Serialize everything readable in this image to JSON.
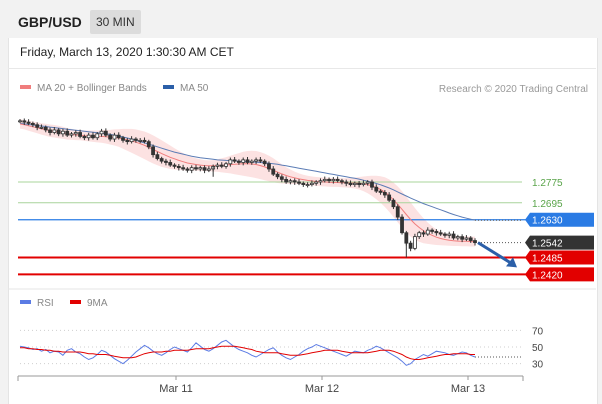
{
  "header": {
    "pair": "GBP/USD",
    "timeframe": "30 MIN"
  },
  "datetime": "Friday, March 13, 2020 1:30:30 AM CET",
  "legend": {
    "ma20": "MA 20 + Bollinger Bands",
    "ma50": "MA 50",
    "research": "Research © 2020 Trading Central"
  },
  "rsi_legend": {
    "rsi": "RSI",
    "ma9": "9MA"
  },
  "colors": {
    "candle": "#333333",
    "ma20": "#f07d7d",
    "bb_fill": "#fbd8d8",
    "ma50": "#5b7cb5",
    "green": "#a8d49b",
    "blue": "#2a7be4",
    "red": "#e20000",
    "price": "#333333",
    "rsi": "#5b7be4",
    "rsi_ma": "#e20000",
    "arrow": "#2b5fa8"
  },
  "chart_data": [
    {
      "type": "candlestick",
      "ylim": [
        1.236,
        1.309
      ],
      "x_ticks": [
        "Mar 11",
        "Mar 12",
        "Mar 13"
      ],
      "levels": [
        {
          "label": "1.2775",
          "value": 1.2775,
          "kind": "resistance"
        },
        {
          "label": "1.2695",
          "value": 1.2695,
          "kind": "resistance"
        },
        {
          "label": "1.2630",
          "value": 1.263,
          "kind": "pivot"
        },
        {
          "label": "1.2542",
          "value": 1.2542,
          "kind": "last"
        },
        {
          "label": "1.2485",
          "value": 1.2485,
          "kind": "support"
        },
        {
          "label": "1.2420",
          "value": 1.242,
          "kind": "support"
        }
      ],
      "close": [
        1.301,
        1.3005,
        1.3,
        1.2995,
        1.2985,
        1.2985,
        1.2975,
        1.2965,
        1.2975,
        1.296,
        1.297,
        1.2955,
        1.296,
        1.2965,
        1.295,
        1.2945,
        1.2955,
        1.2945,
        1.296,
        1.297,
        1.2955,
        1.294,
        1.2955,
        1.2945,
        1.2935,
        1.293,
        1.294,
        1.2935,
        1.2935,
        1.293,
        1.291,
        1.288,
        1.2865,
        1.2855,
        1.285,
        1.284,
        1.2835,
        1.283,
        1.2825,
        1.282,
        1.283,
        1.2825,
        1.283,
        1.282,
        1.2825,
        1.2835,
        1.284,
        1.2835,
        1.2845,
        1.286,
        1.2855,
        1.285,
        1.286,
        1.285,
        1.2855,
        1.286,
        1.2855,
        1.2845,
        1.2825,
        1.2805,
        1.2795,
        1.2785,
        1.2775,
        1.278,
        1.2775,
        1.277,
        1.2765,
        1.2765,
        1.277,
        1.2775,
        1.278,
        1.2785,
        1.278,
        1.2785,
        1.278,
        1.2775,
        1.277,
        1.2765,
        1.277,
        1.2765,
        1.277,
        1.2775,
        1.2755,
        1.274,
        1.2735,
        1.2725,
        1.2705,
        1.268,
        1.264,
        1.258,
        1.254,
        1.252,
        1.2565,
        1.258,
        1.2575,
        1.259,
        1.2585,
        1.258,
        1.2575,
        1.257,
        1.2575,
        1.256,
        1.2565,
        1.2555,
        1.256,
        1.255,
        1.2542
      ],
      "ma20": [
        1.2998,
        1.2995,
        1.2991,
        1.2987,
        1.2983,
        1.2979,
        1.2976,
        1.2972,
        1.297,
        1.2967,
        1.2964,
        1.296,
        1.2958,
        1.2956,
        1.2955,
        1.2953,
        1.2952,
        1.2951,
        1.295,
        1.295,
        1.2949,
        1.2947,
        1.2946,
        1.2944,
        1.2941,
        1.2937,
        1.2933,
        1.2928,
        1.2922,
        1.2916,
        1.2908,
        1.29,
        1.2892,
        1.2884,
        1.2877,
        1.287,
        1.2864,
        1.2858,
        1.2853,
        1.2848,
        1.2845,
        1.2842,
        1.284,
        1.2838,
        1.2837,
        1.2837,
        1.2838,
        1.2839,
        1.284,
        1.2842,
        1.2843,
        1.2844,
        1.2845,
        1.2845,
        1.2844,
        1.2842,
        1.2838,
        1.2833,
        1.2827,
        1.282,
        1.2813,
        1.2806,
        1.28,
        1.2795,
        1.2791,
        1.2787,
        1.2784,
        1.2781,
        1.2779,
        1.2777,
        1.2776,
        1.2775,
        1.2774,
        1.2773,
        1.2773,
        1.2772,
        1.2772,
        1.2771,
        1.2771,
        1.277,
        1.2768,
        1.2765,
        1.276,
        1.2754,
        1.2746,
        1.2736,
        1.2723,
        1.2707,
        1.2689,
        1.267,
        1.265,
        1.2631,
        1.2614,
        1.26,
        1.2588,
        1.2578,
        1.257,
        1.2563,
        1.2558,
        1.2554,
        1.2551,
        1.2549,
        1.2548,
        1.2547,
        1.2547,
        1.2546,
        1.2546
      ],
      "bb_width": [
        0.0018,
        0.0018,
        0.0019,
        0.002,
        0.0021,
        0.0022,
        0.0023,
        0.0024,
        0.0024,
        0.0024,
        0.0023,
        0.0022,
        0.0021,
        0.002,
        0.002,
        0.002,
        0.0021,
        0.0022,
        0.0023,
        0.0024,
        0.0026,
        0.0028,
        0.0031,
        0.0034,
        0.0038,
        0.0042,
        0.0046,
        0.0049,
        0.0051,
        0.0053,
        0.0054,
        0.0054,
        0.0053,
        0.0051,
        0.0048,
        0.0045,
        0.0041,
        0.0037,
        0.0033,
        0.0029,
        0.0026,
        0.0024,
        0.0022,
        0.0021,
        0.0021,
        0.0022,
        0.0024,
        0.0027,
        0.003,
        0.0034,
        0.0038,
        0.0042,
        0.0046,
        0.0049,
        0.0051,
        0.0052,
        0.0052,
        0.0051,
        0.0049,
        0.0046,
        0.0042,
        0.0037,
        0.0032,
        0.0028,
        0.0024,
        0.0021,
        0.0019,
        0.0018,
        0.0017,
        0.0017,
        0.0017,
        0.0017,
        0.0017,
        0.0017,
        0.0017,
        0.0017,
        0.0018,
        0.0019,
        0.0021,
        0.0024,
        0.0028,
        0.0033,
        0.0039,
        0.0045,
        0.0051,
        0.0057,
        0.0062,
        0.0066,
        0.0069,
        0.007,
        0.0069,
        0.0066,
        0.0061,
        0.0055,
        0.0048,
        0.0041,
        0.0035,
        0.003,
        0.0026,
        0.0023,
        0.0021,
        0.002,
        0.0019,
        0.0019,
        0.0019,
        0.0019,
        0.0019
      ],
      "ma50": [
        1.3,
        1.2998,
        1.2996,
        1.2994,
        1.2992,
        1.299,
        1.2988,
        1.2986,
        1.2984,
        1.2982,
        1.298,
        1.2978,
        1.2976,
        1.2974,
        1.2972,
        1.297,
        1.2968,
        1.2966,
        1.2964,
        1.2962,
        1.296,
        1.2958,
        1.2955,
        1.2952,
        1.2948,
        1.2944,
        1.294,
        1.2935,
        1.293,
        1.2925,
        1.292,
        1.2915,
        1.291,
        1.2905,
        1.29,
        1.2895,
        1.289,
        1.2886,
        1.2882,
        1.2878,
        1.2874,
        1.2871,
        1.2868,
        1.2866,
        1.2864,
        1.2862,
        1.286,
        1.2859,
        1.2858,
        1.2857,
        1.2856,
        1.2855,
        1.2854,
        1.2853,
        1.2852,
        1.2851,
        1.285,
        1.2849,
        1.2847,
        1.2845,
        1.2843,
        1.284,
        1.2837,
        1.2834,
        1.2831,
        1.2828,
        1.2825,
        1.2822,
        1.2819,
        1.2816,
        1.2813,
        1.281,
        1.2807,
        1.2804,
        1.2801,
        1.2798,
        1.2795,
        1.2792,
        1.2789,
        1.2786,
        1.2782,
        1.2778,
        1.2774,
        1.2769,
        1.2764,
        1.2758,
        1.2752,
        1.2745,
        1.2737,
        1.2729,
        1.2721,
        1.2713,
        1.2706,
        1.2699,
        1.2692,
        1.2686,
        1.268,
        1.2674,
        1.2668,
        1.2662,
        1.2656,
        1.265,
        1.2645,
        1.264,
        1.2636,
        1.2632,
        1.2628
      ]
    },
    {
      "type": "line",
      "ylim": [
        20,
        80
      ],
      "y_ticks": [
        70,
        50,
        30
      ],
      "rsi": [
        51,
        50,
        49,
        47,
        48,
        45,
        47,
        43,
        45,
        44,
        40,
        46,
        48,
        44,
        42,
        38,
        35,
        37,
        41,
        46,
        44,
        40,
        36,
        33,
        30,
        34,
        39,
        44,
        48,
        52,
        49,
        45,
        42,
        40,
        43,
        47,
        50,
        48,
        46,
        44,
        49,
        55,
        51,
        47,
        45,
        48,
        52,
        56,
        58,
        54,
        50,
        47,
        45,
        43,
        40,
        38,
        41,
        44,
        47,
        49,
        44,
        40,
        37,
        35,
        38,
        41,
        45,
        48,
        50,
        53,
        51,
        49,
        47,
        45,
        43,
        41,
        39,
        42,
        45,
        44,
        43,
        46,
        48,
        51,
        49,
        46,
        43,
        40,
        37,
        33,
        28,
        30,
        35,
        38,
        41,
        39,
        42,
        45,
        44,
        43,
        41,
        40,
        42,
        44,
        43,
        40,
        38
      ],
      "ma9": [
        49,
        49,
        48,
        48,
        47,
        47,
        46,
        46,
        45,
        45,
        44,
        44,
        44,
        44,
        44,
        43,
        42,
        42,
        41,
        41,
        41,
        40,
        39,
        38,
        37,
        37,
        37,
        38,
        40,
        42,
        43,
        44,
        44,
        44,
        45,
        45,
        46,
        46,
        46,
        46,
        47,
        48,
        48,
        48,
        48,
        49,
        50,
        51,
        51,
        51,
        51,
        50,
        49,
        48,
        47,
        45,
        44,
        43,
        43,
        43,
        43,
        42,
        41,
        40,
        40,
        40,
        41,
        42,
        43,
        44,
        45,
        46,
        46,
        46,
        46,
        45,
        44,
        43,
        43,
        43,
        43,
        43,
        44,
        45,
        46,
        46,
        46,
        45,
        43,
        41,
        38,
        36,
        35,
        35,
        36,
        37,
        38,
        39,
        40,
        41,
        41,
        42,
        42,
        42,
        42,
        41,
        41
      ]
    }
  ]
}
